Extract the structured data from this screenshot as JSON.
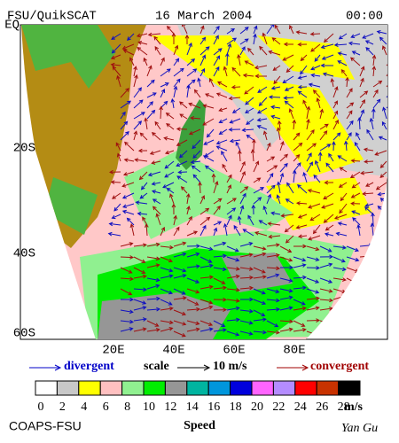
{
  "header": {
    "product": "FSU/QuikSCAT",
    "date": "16 March 2004",
    "time": "00:00"
  },
  "map": {
    "lat_labels": [
      "EQ",
      "20S",
      "40S",
      "60S"
    ],
    "lon_labels": [
      "20E",
      "40E",
      "60E",
      "80E"
    ]
  },
  "legend": {
    "divergent": "divergent",
    "scale": "scale",
    "scale_value": "10 m/s",
    "convergent": "convergent"
  },
  "colorbar": {
    "ticks": [
      0,
      2,
      4,
      6,
      8,
      10,
      12,
      14,
      16,
      18,
      20,
      22,
      24,
      26,
      28
    ],
    "unit": "m/s",
    "label": "Speed",
    "colors": [
      "#ffffff",
      "#c8c8c8",
      "#ffff00",
      "#ffc0c0",
      "#90f090",
      "#00ee00",
      "#969696",
      "#00b4a0",
      "#0096dc",
      "#0000dc",
      "#ff64ff",
      "#b48cff",
      "#ff0000",
      "#c83200",
      "#000000"
    ]
  },
  "footer": {
    "left": "COAPS-FSU",
    "right": "Yan Gu"
  }
}
